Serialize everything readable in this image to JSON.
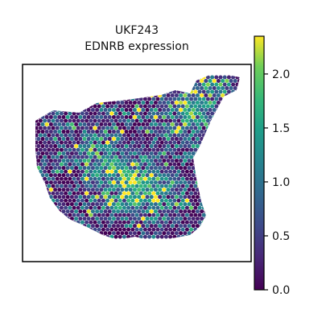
{
  "chart_data": {
    "type": "scatter",
    "title": "UKF243",
    "subtitle": "EDNRB expression",
    "xlabel": "",
    "ylabel": "",
    "colorbar": {
      "colormap": "viridis",
      "range": [
        0.0,
        2.35
      ],
      "ticks": [
        0.0,
        0.5,
        1.0,
        1.5,
        2.0
      ],
      "tick_labels": [
        "0.0",
        "0.5",
        "1.0",
        "1.5",
        "2.0"
      ]
    },
    "axes_visible": false,
    "grid": false,
    "marker": "hexagonal spot (Visium)",
    "series": [
      {
        "values": []
      }
    ],
    "tissue_region": {
      "description": "spatial spots of the tissue section, colored by expression",
      "dominant_value_range": [
        0.0,
        0.6
      ],
      "hotspot_value_range": [
        1.5,
        2.3
      ]
    }
  }
}
